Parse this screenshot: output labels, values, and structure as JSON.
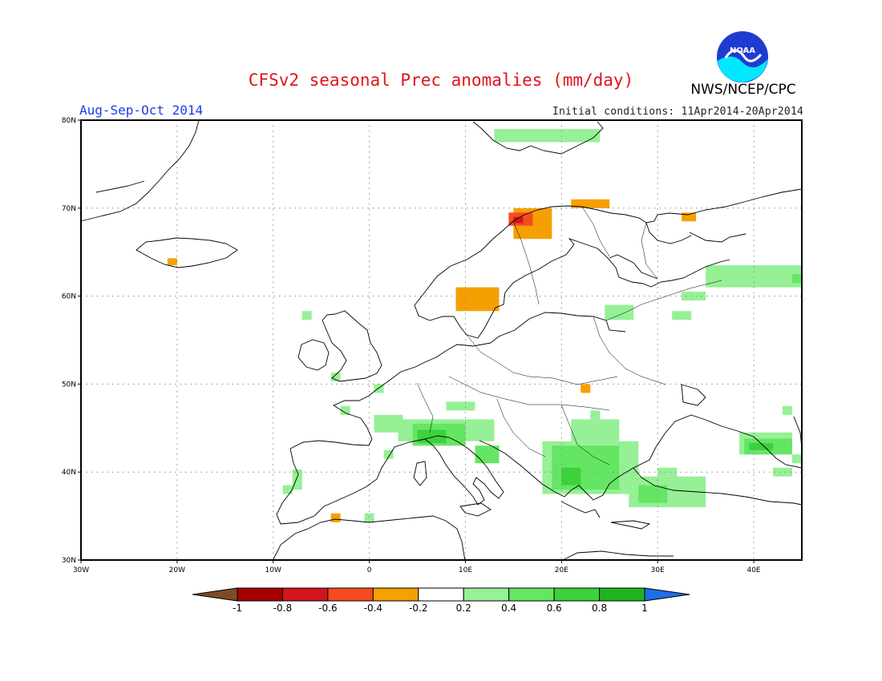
{
  "title": "CFSv2 seasonal Prec anomalies (mm/day)",
  "period": "Aug-Sep-Oct 2014",
  "initial_conditions": "Initial conditions: 11Apr2014-20Apr2014",
  "agency": "NWS/NCEP/CPC",
  "logo_text": "NOAA",
  "map": {
    "lon_range": [
      -30,
      45
    ],
    "lat_range": [
      30,
      80
    ],
    "x_ticks": [
      {
        "lon": -30,
        "label": "30W"
      },
      {
        "lon": -20,
        "label": "20W"
      },
      {
        "lon": -10,
        "label": "10W"
      },
      {
        "lon": 0,
        "label": "0"
      },
      {
        "lon": 10,
        "label": "10E"
      },
      {
        "lon": 20,
        "label": "20E"
      },
      {
        "lon": 30,
        "label": "30E"
      },
      {
        "lon": 40,
        "label": "40E"
      }
    ],
    "y_ticks": [
      {
        "lat": 30,
        "label": "30N"
      },
      {
        "lat": 40,
        "label": "40N"
      },
      {
        "lat": 50,
        "label": "50N"
      },
      {
        "lat": 60,
        "label": "60N"
      },
      {
        "lat": 70,
        "label": "70N"
      },
      {
        "lat": 80,
        "label": "80N"
      }
    ],
    "gridlines": true
  },
  "colorbar": {
    "colors": [
      "#7f4a26",
      "#a50000",
      "#d2141e",
      "#f54b1e",
      "#f5a000",
      "#ffffff",
      "#96f096",
      "#64e664",
      "#3cd23c",
      "#1eb41e",
      "#1e6ee6"
    ],
    "labels": [
      "-1",
      "-0.8",
      "-0.6",
      "-0.4",
      "-0.2",
      "0.2",
      "0.4",
      "0.6",
      "0.8",
      "1"
    ]
  },
  "colors": {
    "dry_light": "#f5a000",
    "dry_mid": "#f54b1e",
    "dry_dark": "#d2141e",
    "wet_light": "#96f096",
    "wet_mid": "#64e664",
    "wet_dark": "#3cd23c",
    "wet_darker": "#1eb41e"
  },
  "anomaly_regions": [
    {
      "level": "wet_light",
      "value": 0.3,
      "lon": [
        13,
        24
      ],
      "lat": [
        77.5,
        79
      ]
    },
    {
      "level": "dry_light",
      "value": -0.3,
      "lon": [
        21,
        25
      ],
      "lat": [
        70,
        71
      ]
    },
    {
      "level": "dry_light",
      "value": -0.3,
      "lon": [
        15,
        19
      ],
      "lat": [
        66.5,
        70
      ]
    },
    {
      "level": "dry_mid",
      "value": -0.5,
      "lon": [
        14.5,
        17
      ],
      "lat": [
        68,
        69.5
      ]
    },
    {
      "level": "dry_dark",
      "value": -0.7,
      "lon": [
        15,
        16
      ],
      "lat": [
        68.3,
        69
      ]
    },
    {
      "level": "dry_light",
      "value": -0.3,
      "lon": [
        32.5,
        34
      ],
      "lat": [
        68.5,
        69.5
      ]
    },
    {
      "level": "dry_light",
      "value": -0.3,
      "lon": [
        -21,
        -20
      ],
      "lat": [
        63.5,
        64.3
      ]
    },
    {
      "level": "dry_light",
      "value": -0.3,
      "lon": [
        9,
        13.5
      ],
      "lat": [
        58.3,
        61
      ]
    },
    {
      "level": "wet_light",
      "value": 0.3,
      "lon": [
        35,
        45
      ],
      "lat": [
        61,
        63.5
      ]
    },
    {
      "level": "wet_mid",
      "value": 0.5,
      "lon": [
        44,
        45
      ],
      "lat": [
        61.5,
        62.5
      ]
    },
    {
      "level": "wet_light",
      "value": 0.3,
      "lon": [
        32.5,
        35
      ],
      "lat": [
        59.5,
        60.5
      ]
    },
    {
      "level": "wet_light",
      "value": 0.3,
      "lon": [
        24.5,
        27.5
      ],
      "lat": [
        57.3,
        59
      ]
    },
    {
      "level": "wet_light",
      "value": 0.3,
      "lon": [
        31.5,
        33.5
      ],
      "lat": [
        57.3,
        58.3
      ]
    },
    {
      "level": "wet_light",
      "value": 0.3,
      "lon": [
        -7,
        -6
      ],
      "lat": [
        57.3,
        58.3
      ]
    },
    {
      "level": "wet_light",
      "value": 0.3,
      "lon": [
        -4,
        -3
      ],
      "lat": [
        50.3,
        51.3
      ]
    },
    {
      "level": "wet_light",
      "value": 0.3,
      "lon": [
        0.5,
        1.5
      ],
      "lat": [
        49,
        50
      ]
    },
    {
      "level": "dry_light",
      "value": -0.3,
      "lon": [
        22,
        23
      ],
      "lat": [
        49,
        50
      ]
    },
    {
      "level": "wet_light",
      "value": 0.3,
      "lon": [
        -3,
        -2
      ],
      "lat": [
        46.5,
        47.5
      ]
    },
    {
      "level": "wet_light",
      "value": 0.3,
      "lon": [
        0.5,
        3.5
      ],
      "lat": [
        44.5,
        46.5
      ]
    },
    {
      "level": "wet_light",
      "value": 0.3,
      "lon": [
        8,
        11
      ],
      "lat": [
        47,
        48
      ]
    },
    {
      "level": "wet_light",
      "value": 0.3,
      "lon": [
        3,
        13
      ],
      "lat": [
        43.5,
        46
      ]
    },
    {
      "level": "wet_mid",
      "value": 0.5,
      "lon": [
        4.5,
        10
      ],
      "lat": [
        43,
        45.5
      ]
    },
    {
      "level": "wet_dark",
      "value": 0.7,
      "lon": [
        5,
        8
      ],
      "lat": [
        43.3,
        44.8
      ]
    },
    {
      "level": "wet_mid",
      "value": 0.5,
      "lon": [
        11,
        13.5
      ],
      "lat": [
        41,
        43
      ]
    },
    {
      "level": "wet_light",
      "value": 0.3,
      "lon": [
        1.5,
        2.5
      ],
      "lat": [
        41.5,
        42.5
      ]
    },
    {
      "level": "wet_light",
      "value": 0.3,
      "lon": [
        21,
        26
      ],
      "lat": [
        43.5,
        46
      ]
    },
    {
      "level": "wet_light",
      "value": 0.3,
      "lon": [
        23,
        24
      ],
      "lat": [
        46,
        47
      ]
    },
    {
      "level": "wet_light",
      "value": 0.3,
      "lon": [
        18,
        28
      ],
      "lat": [
        37.5,
        43.5
      ]
    },
    {
      "level": "wet_mid",
      "value": 0.5,
      "lon": [
        19,
        26
      ],
      "lat": [
        38,
        43
      ]
    },
    {
      "level": "wet_dark",
      "value": 0.7,
      "lon": [
        20,
        22
      ],
      "lat": [
        38.5,
        40.5
      ]
    },
    {
      "level": "wet_light",
      "value": 0.3,
      "lon": [
        27,
        35
      ],
      "lat": [
        36,
        39.5
      ]
    },
    {
      "level": "wet_mid",
      "value": 0.5,
      "lon": [
        28,
        31
      ],
      "lat": [
        36.5,
        38.5
      ]
    },
    {
      "level": "wet_light",
      "value": 0.3,
      "lon": [
        30,
        32
      ],
      "lat": [
        39.5,
        40.5
      ]
    },
    {
      "level": "wet_light",
      "value": 0.3,
      "lon": [
        33,
        34
      ],
      "lat": [
        38.3,
        39.3
      ]
    },
    {
      "level": "wet_light",
      "value": 0.3,
      "lon": [
        38.5,
        44
      ],
      "lat": [
        42,
        44.5
      ]
    },
    {
      "level": "wet_mid",
      "value": 0.5,
      "lon": [
        39,
        44
      ],
      "lat": [
        42,
        43.8
      ]
    },
    {
      "level": "wet_dark",
      "value": 0.7,
      "lon": [
        39.5,
        42
      ],
      "lat": [
        42.5,
        43.3
      ]
    },
    {
      "level": "wet_light",
      "value": 0.3,
      "lon": [
        44,
        45
      ],
      "lat": [
        41,
        42
      ]
    },
    {
      "level": "wet_light",
      "value": 0.3,
      "lon": [
        43,
        44
      ],
      "lat": [
        46.5,
        47.5
      ]
    },
    {
      "level": "wet_light",
      "value": 0.3,
      "lon": [
        42,
        44
      ],
      "lat": [
        39.5,
        40.5
      ]
    },
    {
      "level": "wet_light",
      "value": 0.3,
      "lon": [
        -8,
        -7
      ],
      "lat": [
        38,
        40.3
      ]
    },
    {
      "level": "wet_light",
      "value": 0.3,
      "lon": [
        -9,
        -8
      ],
      "lat": [
        37.5,
        38.5
      ]
    },
    {
      "level": "dry_light",
      "value": -0.3,
      "lon": [
        -4,
        -3
      ],
      "lat": [
        34.3,
        35.3
      ]
    },
    {
      "level": "wet_light",
      "value": 0.3,
      "lon": [
        -0.5,
        0.5
      ],
      "lat": [
        34.3,
        35.3
      ]
    }
  ]
}
